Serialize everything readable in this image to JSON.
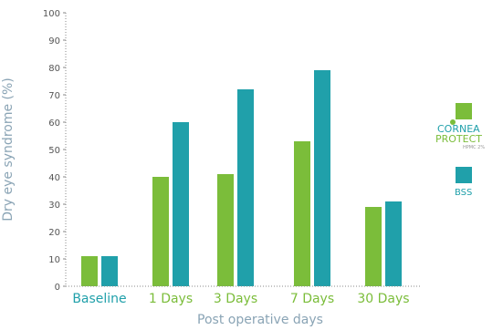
{
  "colors": {
    "green": "#7bbd3a",
    "teal": "#20a0aa",
    "axis": "#8a8a8a",
    "label_teal": "#20a0aa"
  },
  "chart_data": {
    "type": "bar",
    "categories": [
      "Baseline",
      "1 Days",
      "3 Days",
      "7 Days",
      "30 Days"
    ],
    "series": [
      {
        "name": "CORNEA PROTECT HPMC 2%",
        "color": "#7bbd3a",
        "values": [
          11,
          40,
          41,
          53,
          29
        ]
      },
      {
        "name": "BSS",
        "color": "#20a0aa",
        "values": [
          11,
          60,
          72,
          79,
          31
        ]
      }
    ],
    "title": "",
    "xlabel": "Post operative days",
    "ylabel": "Dry eye syndrome (%)",
    "ylim": [
      0,
      100
    ],
    "yticks": [
      0,
      10,
      20,
      30,
      40,
      50,
      60,
      70,
      80,
      90,
      100
    ],
    "grid": false,
    "legend_position": "right"
  },
  "legend": {
    "brand_line1": "CORNEA",
    "brand_line2": "PROTECT",
    "brand_sub": "HPMC 2%",
    "bss_label": "BSS"
  }
}
